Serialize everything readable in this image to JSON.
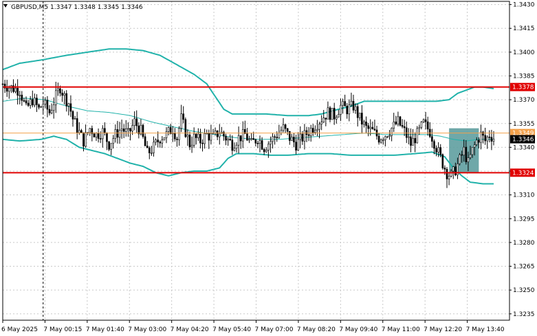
{
  "colors": {
    "background": "#ffffff",
    "grid": "#c8c8c8",
    "candle": "#000000",
    "bollinger": "#20b2aa",
    "level": "#e00000",
    "bid": "#f2a04a",
    "zone": "#5f9ea0"
  },
  "chart_data": {
    "type": "candlestick",
    "title": "GBPUSD,M5  1.3347 1.3348 1.3345 1.3346",
    "ylim": [
      1.3231,
      1.3432
    ],
    "y_ticks": [
      "1.3430",
      "1.3415",
      "1.3400",
      "1.3385",
      "1.3370",
      "1.3355",
      "1.3340",
      "1.3325",
      "1.3310",
      "1.3295",
      "1.3280",
      "1.3265",
      "1.3250",
      "1.3235"
    ],
    "x_ticks": [
      "6 May 2025",
      "7 May 00:15",
      "7 May 01:40",
      "7 May 03:00",
      "7 May 04:20",
      "7 May 05:40",
      "7 May 07:00",
      "7 May 08:20",
      "7 May 09:40",
      "7 May 11:00",
      "7 May 12:20",
      "7 May 13:40"
    ],
    "grid": true,
    "bars_count": 232,
    "period_separator_bar": 19,
    "price_anchors": [
      [
        0,
        1.338
      ],
      [
        3,
        1.3378
      ],
      [
        8,
        1.3376
      ],
      [
        11,
        1.3364
      ],
      [
        14,
        1.337
      ],
      [
        17,
        1.3364
      ],
      [
        19,
        1.3368
      ],
      [
        22,
        1.3362
      ],
      [
        25,
        1.3372
      ],
      [
        27,
        1.3378
      ],
      [
        29,
        1.3372
      ],
      [
        31,
        1.3368
      ],
      [
        33,
        1.3358
      ],
      [
        35,
        1.3352
      ],
      [
        38,
        1.3344
      ],
      [
        41,
        1.3352
      ],
      [
        44,
        1.3348
      ],
      [
        47,
        1.335
      ],
      [
        50,
        1.3342
      ],
      [
        53,
        1.3348
      ],
      [
        56,
        1.3352
      ],
      [
        59,
        1.3348
      ],
      [
        62,
        1.3356
      ],
      [
        65,
        1.335
      ],
      [
        68,
        1.3336
      ],
      [
        71,
        1.334
      ],
      [
        74,
        1.3346
      ],
      [
        77,
        1.3348
      ],
      [
        80,
        1.3352
      ],
      [
        82,
        1.3346
      ],
      [
        84,
        1.3358
      ],
      [
        86,
        1.335
      ],
      [
        88,
        1.3342
      ],
      [
        90,
        1.3346
      ],
      [
        93,
        1.3344
      ],
      [
        96,
        1.3348
      ],
      [
        99,
        1.3346
      ],
      [
        102,
        1.335
      ],
      [
        105,
        1.3346
      ],
      [
        108,
        1.3342
      ],
      [
        111,
        1.3346
      ],
      [
        114,
        1.3348
      ],
      [
        117,
        1.3342
      ],
      [
        120,
        1.3346
      ],
      [
        123,
        1.334
      ],
      [
        126,
        1.3344
      ],
      [
        129,
        1.3348
      ],
      [
        132,
        1.3352
      ],
      [
        135,
        1.3346
      ],
      [
        138,
        1.3342
      ],
      [
        141,
        1.3346
      ],
      [
        144,
        1.335
      ],
      [
        147,
        1.3354
      ],
      [
        150,
        1.3358
      ],
      [
        153,
        1.3362
      ],
      [
        156,
        1.336
      ],
      [
        159,
        1.3366
      ],
      [
        162,
        1.3364
      ],
      [
        165,
        1.3366
      ],
      [
        168,
        1.3358
      ],
      [
        171,
        1.3352
      ],
      [
        174,
        1.335
      ],
      [
        177,
        1.3346
      ],
      [
        180,
        1.3348
      ],
      [
        183,
        1.3352
      ],
      [
        186,
        1.3356
      ],
      [
        189,
        1.335
      ],
      [
        192,
        1.3342
      ],
      [
        195,
        1.3348
      ],
      [
        198,
        1.3355
      ],
      [
        201,
        1.335
      ],
      [
        204,
        1.334
      ],
      [
        207,
        1.333
      ],
      [
        209,
        1.3324
      ],
      [
        211,
        1.3322
      ],
      [
        213,
        1.3326
      ],
      [
        215,
        1.3332
      ],
      [
        217,
        1.3338
      ],
      [
        219,
        1.333
      ],
      [
        221,
        1.3338
      ],
      [
        223,
        1.3344
      ],
      [
        225,
        1.3348
      ],
      [
        227,
        1.3344
      ],
      [
        229,
        1.3348
      ],
      [
        231,
        1.3346
      ]
    ],
    "bollinger_upper": [
      [
        0,
        1.3389
      ],
      [
        8,
        1.3393
      ],
      [
        18,
        1.3395
      ],
      [
        30,
        1.3398
      ],
      [
        40,
        1.34
      ],
      [
        50,
        1.3402
      ],
      [
        58,
        1.3402
      ],
      [
        66,
        1.3401
      ],
      [
        74,
        1.3398
      ],
      [
        82,
        1.3392
      ],
      [
        90,
        1.3386
      ],
      [
        96,
        1.338
      ],
      [
        100,
        1.3372
      ],
      [
        104,
        1.3364
      ],
      [
        108,
        1.3361
      ],
      [
        116,
        1.3361
      ],
      [
        124,
        1.3361
      ],
      [
        134,
        1.336
      ],
      [
        144,
        1.336
      ],
      [
        150,
        1.3361
      ],
      [
        158,
        1.3364
      ],
      [
        164,
        1.3366
      ],
      [
        170,
        1.3369
      ],
      [
        176,
        1.3369
      ],
      [
        184,
        1.3369
      ],
      [
        192,
        1.3369
      ],
      [
        198,
        1.3369
      ],
      [
        204,
        1.3369
      ],
      [
        210,
        1.337
      ],
      [
        214,
        1.3374
      ],
      [
        218,
        1.3376
      ],
      [
        222,
        1.3378
      ],
      [
        226,
        1.3378
      ],
      [
        231,
        1.3377
      ]
    ],
    "bollinger_middle": [
      [
        0,
        1.3369
      ],
      [
        10,
        1.3371
      ],
      [
        20,
        1.337
      ],
      [
        30,
        1.3366
      ],
      [
        40,
        1.3363
      ],
      [
        50,
        1.3362
      ],
      [
        60,
        1.336
      ],
      [
        70,
        1.3356
      ],
      [
        80,
        1.3353
      ],
      [
        90,
        1.335
      ],
      [
        100,
        1.3348
      ],
      [
        110,
        1.3346
      ],
      [
        120,
        1.3345
      ],
      [
        130,
        1.3345
      ],
      [
        140,
        1.3346
      ],
      [
        150,
        1.3347
      ],
      [
        160,
        1.3348
      ],
      [
        170,
        1.3349
      ],
      [
        180,
        1.3348
      ],
      [
        190,
        1.3348
      ],
      [
        200,
        1.3348
      ],
      [
        206,
        1.3347
      ],
      [
        212,
        1.3345
      ],
      [
        218,
        1.3344
      ],
      [
        224,
        1.3345
      ],
      [
        231,
        1.3345
      ]
    ],
    "bollinger_lower": [
      [
        0,
        1.3345
      ],
      [
        8,
        1.3344
      ],
      [
        18,
        1.3345
      ],
      [
        24,
        1.3347
      ],
      [
        30,
        1.3345
      ],
      [
        36,
        1.334
      ],
      [
        42,
        1.3338
      ],
      [
        48,
        1.3336
      ],
      [
        54,
        1.3333
      ],
      [
        60,
        1.333
      ],
      [
        66,
        1.3328
      ],
      [
        72,
        1.3324
      ],
      [
        78,
        1.3322
      ],
      [
        84,
        1.3324
      ],
      [
        90,
        1.3325
      ],
      [
        96,
        1.3325
      ],
      [
        102,
        1.3327
      ],
      [
        106,
        1.3333
      ],
      [
        110,
        1.3336
      ],
      [
        118,
        1.3336
      ],
      [
        126,
        1.3335
      ],
      [
        134,
        1.3335
      ],
      [
        144,
        1.3336
      ],
      [
        154,
        1.3336
      ],
      [
        164,
        1.3335
      ],
      [
        174,
        1.3335
      ],
      [
        184,
        1.3335
      ],
      [
        194,
        1.3336
      ],
      [
        202,
        1.3337
      ],
      [
        208,
        1.3334
      ],
      [
        212,
        1.3327
      ],
      [
        216,
        1.3322
      ],
      [
        220,
        1.3318
      ],
      [
        226,
        1.3317
      ],
      [
        231,
        1.3317
      ]
    ],
    "levels": [
      {
        "label": "1.3378",
        "value": 1.3378
      },
      {
        "label": "1.3324",
        "value": 1.3324
      }
    ],
    "bid_line": {
      "label": "1.3349",
      "value": 1.3349
    },
    "current_price": {
      "label": "1.3346",
      "value": 1.3346
    },
    "zone": {
      "bar_start": 210,
      "bar_end": 224,
      "low": 1.3324,
      "high": 1.3352
    }
  }
}
